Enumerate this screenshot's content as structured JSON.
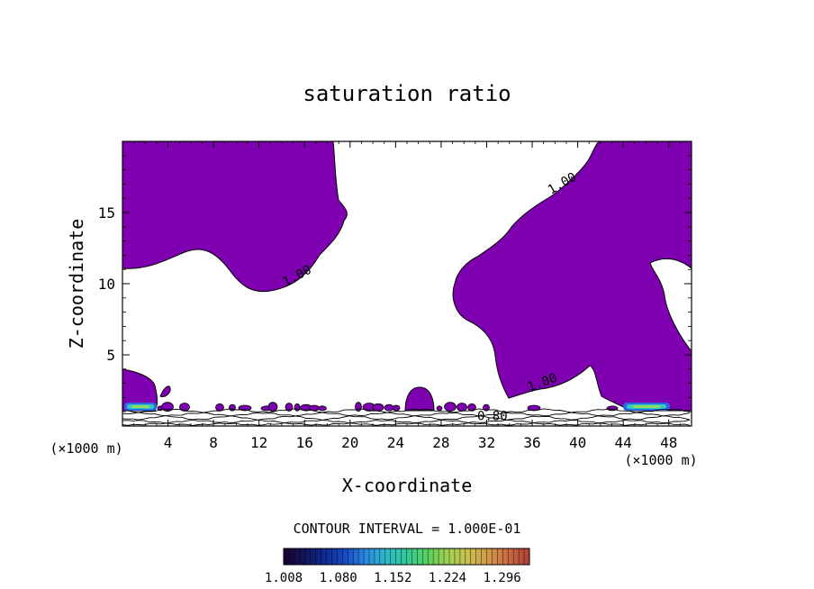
{
  "chart_data": {
    "type": "contour",
    "title": "saturation ratio",
    "xlabel": "X-coordinate",
    "ylabel": "Z-coordinate",
    "x_unit": "(×1000 m)",
    "x_unit_right": "(×1000 m)",
    "xlim": [
      0,
      50
    ],
    "ylim": [
      0,
      20
    ],
    "x_ticks": [
      4,
      8,
      12,
      16,
      20,
      24,
      28,
      32,
      36,
      40,
      44,
      48
    ],
    "y_ticks": [
      5,
      10,
      15
    ],
    "contour_labels": [
      {
        "text": "1.00",
        "x": 38.8,
        "y": 16.8,
        "angle": -30
      },
      {
        "text": "1.00",
        "x": 15.5,
        "y": 10.3,
        "angle": -28
      },
      {
        "text": "1.00",
        "x": 37.0,
        "y": 2.8,
        "angle": -20
      },
      {
        "text": "0.80",
        "x": 32.5,
        "y": 0.4,
        "angle": 0
      }
    ],
    "contour_interval_label": "CONTOUR INTERVAL = 1.000E-01",
    "colorbar": {
      "ticks": [
        "1.008",
        "1.080",
        "1.152",
        "1.224",
        "1.296"
      ],
      "min": 1.008,
      "max": 1.332,
      "colors": [
        "#1a0033",
        "#14145a",
        "#0d2a90",
        "#1a4ac8",
        "#2a88e0",
        "#30b8c8",
        "#30c898",
        "#58d060",
        "#a0d050",
        "#c8c050",
        "#d09848",
        "#c86840",
        "#b04038"
      ]
    },
    "fill_color": "#7e00b0",
    "core_colors": [
      "#2a6ae0",
      "#38c8c8",
      "#88e060"
    ]
  }
}
